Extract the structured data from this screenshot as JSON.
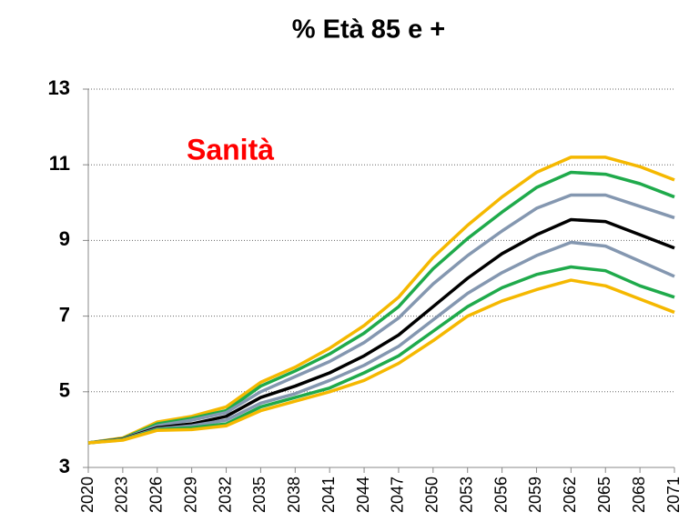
{
  "chart_data": {
    "type": "line",
    "title": "% Età 85 e +",
    "annotation": "Sanità",
    "x": [
      2020,
      2023,
      2026,
      2029,
      2032,
      2035,
      2038,
      2041,
      2044,
      2047,
      2050,
      2053,
      2056,
      2059,
      2062,
      2065,
      2068,
      2071
    ],
    "xlim": [
      2020,
      2071
    ],
    "xticks": [
      2020,
      2023,
      2026,
      2029,
      2032,
      2035,
      2038,
      2041,
      2044,
      2047,
      2050,
      2053,
      2056,
      2059,
      2062,
      2065,
      2068,
      2071
    ],
    "ylim": [
      3,
      13
    ],
    "yticks": [
      3,
      5,
      7,
      9,
      11,
      13
    ],
    "grid": true,
    "series": [
      {
        "color": "#f5b800",
        "values": [
          3.65,
          3.78,
          4.2,
          4.35,
          4.6,
          5.25,
          5.65,
          6.15,
          6.75,
          7.5,
          8.55,
          9.4,
          10.15,
          10.8,
          11.2,
          11.2,
          10.95,
          10.6
        ]
      },
      {
        "color": "#1faa4b",
        "values": [
          3.65,
          3.76,
          4.15,
          4.3,
          4.5,
          5.15,
          5.55,
          6.0,
          6.55,
          7.25,
          8.25,
          9.05,
          9.75,
          10.4,
          10.8,
          10.75,
          10.5,
          10.15
        ]
      },
      {
        "color": "#8497b0",
        "values": [
          3.65,
          3.75,
          4.1,
          4.25,
          4.45,
          5.0,
          5.4,
          5.8,
          6.3,
          6.95,
          7.85,
          8.6,
          9.25,
          9.85,
          10.2,
          10.2,
          9.9,
          9.6
        ]
      },
      {
        "color": "#000000",
        "values": [
          3.65,
          3.75,
          4.05,
          4.15,
          4.35,
          4.85,
          5.15,
          5.5,
          5.95,
          6.5,
          7.25,
          8.0,
          8.65,
          9.15,
          9.55,
          9.5,
          9.15,
          8.8
        ]
      },
      {
        "color": "#8497b0",
        "values": [
          3.65,
          3.74,
          4.02,
          4.1,
          4.25,
          4.7,
          4.95,
          5.3,
          5.7,
          6.2,
          6.9,
          7.6,
          8.15,
          8.6,
          8.95,
          8.85,
          8.45,
          8.05
        ]
      },
      {
        "color": "#1faa4b",
        "values": [
          3.65,
          3.73,
          4.0,
          4.05,
          4.15,
          4.6,
          4.85,
          5.1,
          5.5,
          5.95,
          6.6,
          7.25,
          7.75,
          8.1,
          8.3,
          8.2,
          7.8,
          7.5
        ]
      },
      {
        "color": "#f5b800",
        "values": [
          3.65,
          3.72,
          3.98,
          4.0,
          4.1,
          4.5,
          4.75,
          5.0,
          5.3,
          5.75,
          6.35,
          7.0,
          7.4,
          7.7,
          7.95,
          7.8,
          7.45,
          7.1
        ]
      }
    ]
  }
}
